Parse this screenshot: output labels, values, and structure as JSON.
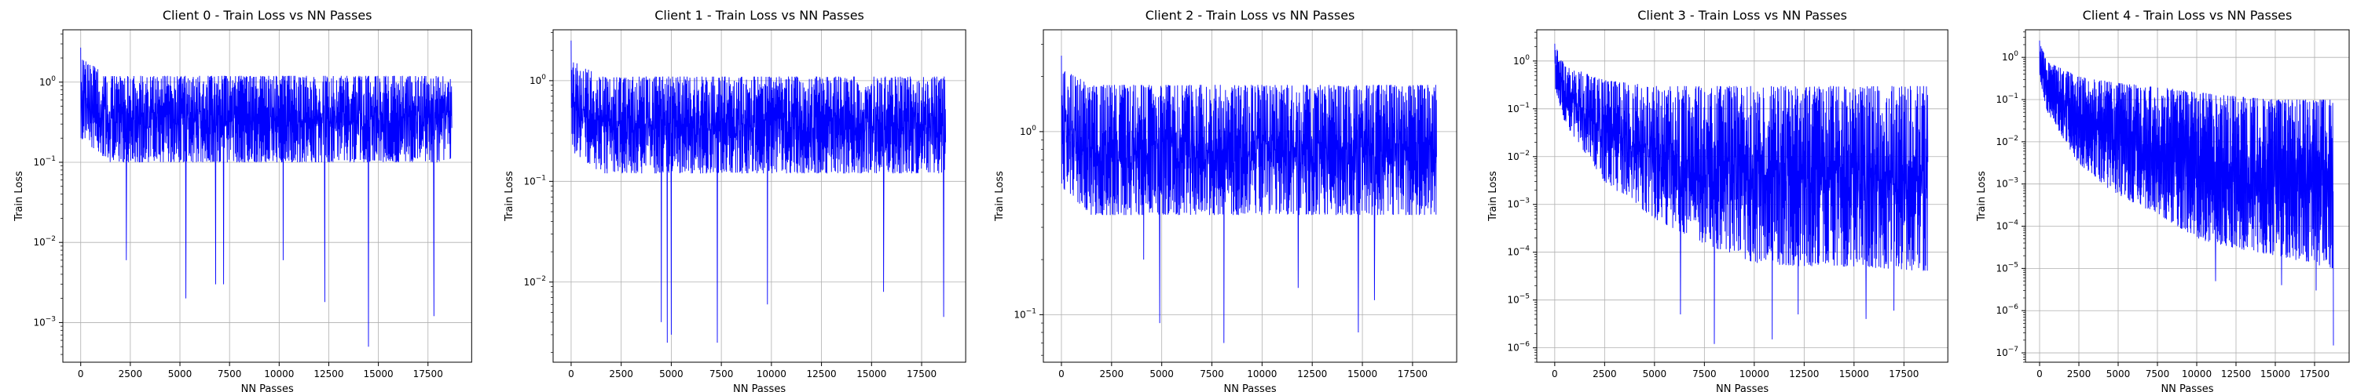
{
  "chart_data": [
    {
      "type": "line",
      "title": "Client 0 - Train Loss vs NN Passes",
      "xlabel": "NN Passes",
      "ylabel": "Train Loss",
      "yscale": "log",
      "grid": true,
      "xlim": [
        -900,
        19700
      ],
      "ylim": [
        0.00032,
        4.5
      ],
      "xticks": [
        0,
        2500,
        5000,
        7500,
        10000,
        12500,
        15000,
        17500
      ],
      "xtick_labels": [
        "0",
        "2500",
        "5000",
        "7500",
        "10000",
        "12500",
        "15000",
        "17500"
      ],
      "yticks": [
        -3,
        -2,
        -1,
        0
      ],
      "series": [
        {
          "color": "#0000ff",
          "n_points": 18800,
          "initial_loss": 2.7,
          "band": [
            {
              "x": 0,
              "low": 0.2,
              "high": 2.0
            },
            {
              "x": 1500,
              "low": 0.1,
              "high": 1.2
            },
            {
              "x": 5000,
              "low": 0.1,
              "high": 1.2
            },
            {
              "x": 18700,
              "low": 0.1,
              "high": 1.2
            }
          ],
          "dips": [
            {
              "x": 2300,
              "y": 0.006
            },
            {
              "x": 5300,
              "y": 0.002
            },
            {
              "x": 6800,
              "y": 0.003
            },
            {
              "x": 7200,
              "y": 0.003
            },
            {
              "x": 10200,
              "y": 0.006
            },
            {
              "x": 12300,
              "y": 0.0018
            },
            {
              "x": 14500,
              "y": 0.0005
            },
            {
              "x": 17800,
              "y": 0.0012
            }
          ]
        }
      ]
    },
    {
      "type": "line",
      "title": "Client 1 - Train Loss vs NN Passes",
      "xlabel": "NN Passes",
      "ylabel": "Train Loss",
      "yscale": "log",
      "grid": true,
      "xlim": [
        -900,
        19700
      ],
      "ylim": [
        0.0016,
        3.2
      ],
      "xticks": [
        0,
        2500,
        5000,
        7500,
        10000,
        12500,
        15000,
        17500
      ],
      "xtick_labels": [
        "0",
        "2500",
        "5000",
        "7500",
        "10000",
        "12500",
        "15000",
        "17500"
      ],
      "yticks": [
        -2,
        -1,
        0
      ],
      "series": [
        {
          "color": "#0000ff",
          "n_points": 18800,
          "initial_loss": 2.5,
          "band": [
            {
              "x": 0,
              "low": 0.2,
              "high": 1.6
            },
            {
              "x": 1500,
              "low": 0.12,
              "high": 1.1
            },
            {
              "x": 5000,
              "low": 0.12,
              "high": 1.1
            },
            {
              "x": 18700,
              "low": 0.12,
              "high": 1.1
            }
          ],
          "dips": [
            {
              "x": 4500,
              "y": 0.004
            },
            {
              "x": 4800,
              "y": 0.0025
            },
            {
              "x": 5000,
              "y": 0.003
            },
            {
              "x": 7300,
              "y": 0.0025
            },
            {
              "x": 9800,
              "y": 0.006
            },
            {
              "x": 15600,
              "y": 0.008
            },
            {
              "x": 18600,
              "y": 0.0045
            }
          ]
        }
      ]
    },
    {
      "type": "line",
      "title": "Client 2 - Train Loss vs NN Passes",
      "xlabel": "NN Passes",
      "ylabel": "Train Loss",
      "yscale": "log",
      "grid": true,
      "xlim": [
        -900,
        19700
      ],
      "ylim": [
        0.055,
        3.6
      ],
      "xticks": [
        0,
        2500,
        5000,
        7500,
        10000,
        12500,
        15000,
        17500
      ],
      "xtick_labels": [
        "0",
        "2500",
        "5000",
        "7500",
        "10000",
        "12500",
        "15000",
        "17500"
      ],
      "yticks": [
        -1,
        0
      ],
      "series": [
        {
          "color": "#0000ff",
          "n_points": 18800,
          "initial_loss": 2.6,
          "band": [
            {
              "x": 0,
              "low": 0.5,
              "high": 2.2
            },
            {
              "x": 1500,
              "low": 0.35,
              "high": 1.8
            },
            {
              "x": 5000,
              "low": 0.35,
              "high": 1.8
            },
            {
              "x": 18700,
              "low": 0.35,
              "high": 1.8
            }
          ],
          "dips": [
            {
              "x": 4100,
              "y": 0.2
            },
            {
              "x": 4900,
              "y": 0.09
            },
            {
              "x": 8100,
              "y": 0.07
            },
            {
              "x": 11800,
              "y": 0.14
            },
            {
              "x": 14800,
              "y": 0.08
            },
            {
              "x": 15600,
              "y": 0.12
            }
          ]
        }
      ]
    },
    {
      "type": "line",
      "title": "Client 3 - Train Loss vs NN Passes",
      "xlabel": "NN Passes",
      "ylabel": "Train Loss",
      "yscale": "log",
      "grid": true,
      "xlim": [
        -900,
        19700
      ],
      "ylim": [
        5e-07,
        4.5
      ],
      "xticks": [
        0,
        2500,
        5000,
        7500,
        10000,
        12500,
        15000,
        17500
      ],
      "xtick_labels": [
        "0",
        "2500",
        "5000",
        "7500",
        "10000",
        "12500",
        "15000",
        "17500"
      ],
      "yticks": [
        -6,
        -5,
        -4,
        -3,
        -2,
        -1,
        0
      ],
      "series": [
        {
          "color": "#0000ff",
          "n_points": 18800,
          "initial_loss": 2.3,
          "band": [
            {
              "x": 0,
              "low": 0.3,
              "high": 2.2
            },
            {
              "x": 500,
              "low": 0.05,
              "high": 0.8
            },
            {
              "x": 2500,
              "low": 0.003,
              "high": 0.4
            },
            {
              "x": 5000,
              "low": 0.0005,
              "high": 0.3
            },
            {
              "x": 7500,
              "low": 0.00015,
              "high": 0.3
            },
            {
              "x": 10000,
              "low": 6e-05,
              "high": 0.3
            },
            {
              "x": 12500,
              "low": 5e-05,
              "high": 0.3
            },
            {
              "x": 15000,
              "low": 5e-05,
              "high": 0.3
            },
            {
              "x": 18700,
              "low": 4e-05,
              "high": 0.3
            }
          ],
          "dips": [
            {
              "x": 6300,
              "y": 5e-06
            },
            {
              "x": 8000,
              "y": 1.2e-06
            },
            {
              "x": 10900,
              "y": 1.5e-06
            },
            {
              "x": 12200,
              "y": 5e-06
            },
            {
              "x": 15600,
              "y": 4e-06
            },
            {
              "x": 17000,
              "y": 6e-06
            }
          ]
        }
      ]
    },
    {
      "type": "line",
      "title": "Client 4 - Train Loss vs NN Passes",
      "xlabel": "NN Passes",
      "ylabel": "Train Loss",
      "yscale": "log",
      "grid": true,
      "xlim": [
        -900,
        19700
      ],
      "ylim": [
        6e-08,
        4.5
      ],
      "xticks": [
        0,
        2500,
        5000,
        7500,
        10000,
        12500,
        15000,
        17500
      ],
      "xtick_labels": [
        "0",
        "2500",
        "5000",
        "7500",
        "10000",
        "12500",
        "15000",
        "17500"
      ],
      "yticks": [
        -7,
        -6,
        -5,
        -4,
        -3,
        -2,
        -1,
        0
      ],
      "series": [
        {
          "color": "#0000ff",
          "n_points": 18800,
          "initial_loss": 2.5,
          "band": [
            {
              "x": 0,
              "low": 0.3,
              "high": 2.2
            },
            {
              "x": 500,
              "low": 0.05,
              "high": 0.8
            },
            {
              "x": 2500,
              "low": 0.003,
              "high": 0.35
            },
            {
              "x": 5000,
              "low": 0.0005,
              "high": 0.25
            },
            {
              "x": 7500,
              "low": 0.0002,
              "high": 0.2
            },
            {
              "x": 10000,
              "low": 5e-05,
              "high": 0.15
            },
            {
              "x": 12500,
              "low": 3e-05,
              "high": 0.12
            },
            {
              "x": 15000,
              "low": 2e-05,
              "high": 0.1
            },
            {
              "x": 18700,
              "low": 1e-05,
              "high": 0.1
            }
          ],
          "dips": [
            {
              "x": 11200,
              "y": 5e-06
            },
            {
              "x": 15400,
              "y": 4e-06
            },
            {
              "x": 17600,
              "y": 3e-06
            },
            {
              "x": 18700,
              "y": 1.5e-07
            }
          ]
        }
      ]
    }
  ]
}
